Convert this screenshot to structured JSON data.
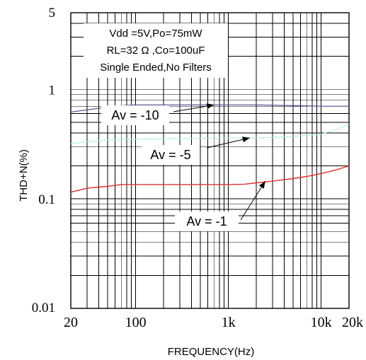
{
  "chart_data": {
    "type": "line",
    "xlabel": "FREQUENCY(Hz)",
    "ylabel": "THD+N(%)",
    "x_scale": "log",
    "y_scale": "log",
    "xlim": [
      20,
      20000
    ],
    "ylim": [
      0.01,
      5
    ],
    "x_ticks": [
      {
        "value": 20,
        "label": "20"
      },
      {
        "value": 100,
        "label": "100"
      },
      {
        "value": 1000,
        "label": "1k"
      },
      {
        "value": 10000,
        "label": "10k"
      },
      {
        "value": 20000,
        "label": "20k"
      }
    ],
    "y_ticks": [
      {
        "value": 0.01,
        "label": "0.01"
      },
      {
        "value": 0.1,
        "label": "0.1"
      },
      {
        "value": 1,
        "label": "1"
      },
      {
        "value": 5,
        "label": "5"
      }
    ],
    "grid": true,
    "conditions": [
      "Vdd =5V,Po=75mW",
      "RL=32 Ω ,Co=100uF",
      "Single Ended,No Filters"
    ],
    "series": [
      {
        "name": "Av = -10",
        "color": "#4a4a8a",
        "x": [
          20,
          40,
          70,
          100,
          200,
          500,
          1000,
          2000,
          5000,
          10000,
          20000
        ],
        "y": [
          0.62,
          0.67,
          0.71,
          0.72,
          0.72,
          0.72,
          0.72,
          0.72,
          0.71,
          0.7,
          0.7
        ]
      },
      {
        "name": "Av = -5",
        "color": "#aef0d0",
        "x": [
          20,
          40,
          70,
          100,
          200,
          500,
          1000,
          2000,
          5000,
          10000,
          15000,
          20000
        ],
        "y": [
          0.32,
          0.34,
          0.35,
          0.35,
          0.355,
          0.355,
          0.36,
          0.36,
          0.37,
          0.39,
          0.43,
          0.48
        ]
      },
      {
        "name": "Av = -1",
        "color": "#e03030",
        "x": [
          20,
          30,
          40,
          50,
          70,
          100,
          200,
          500,
          1000,
          1500,
          2000,
          3000,
          5000,
          7000,
          10000,
          15000,
          20000
        ],
        "y": [
          0.115,
          0.125,
          0.128,
          0.13,
          0.135,
          0.135,
          0.135,
          0.135,
          0.135,
          0.136,
          0.14,
          0.145,
          0.153,
          0.16,
          0.17,
          0.185,
          0.2
        ]
      }
    ],
    "annotations": [
      {
        "text": "Av = -10",
        "series": "Av = -10",
        "arrow_to": [
          700,
          0.72
        ]
      },
      {
        "text": "Av = -5",
        "series": "Av = -5",
        "arrow_to": [
          1700,
          0.36
        ]
      },
      {
        "text": "Av = -1",
        "series": "Av = -1",
        "arrow_to": [
          2500,
          0.145
        ]
      }
    ]
  }
}
